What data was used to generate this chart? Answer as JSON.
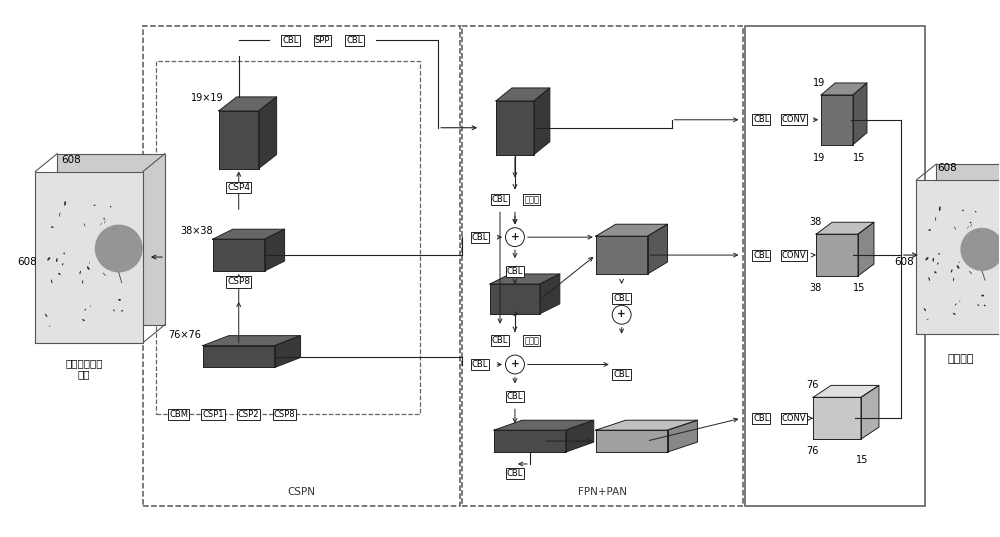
{
  "input_label": "待分析染色体\n图像",
  "output_label": "分析结果",
  "cspn_label": "CSPN",
  "fpnpan_label": "FPN+PAN",
  "size_19": "19×19",
  "size_38": "38×38",
  "size_76": "76×76",
  "col_dark_front": "#4a4a4a",
  "col_dark_top": "#666666",
  "col_dark_side": "#383838",
  "col_mid_front": "#707070",
  "col_mid_top": "#909090",
  "col_mid_side": "#585858",
  "col_light_front": "#a0a0a0",
  "col_light_top": "#c0c0c0",
  "col_light_side": "#888888",
  "col_vlight_front": "#c8c8c8",
  "col_vlight_top": "#e0e0e0",
  "col_vlight_side": "#b0b0b0"
}
